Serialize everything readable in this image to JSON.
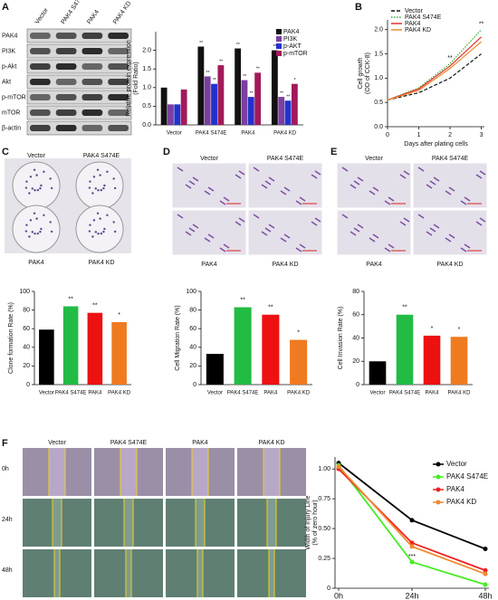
{
  "panel_letters": [
    "A",
    "B",
    "C",
    "D",
    "E",
    "F"
  ],
  "blot": {
    "columns": [
      "Vector",
      "PAK4 S474E",
      "PAK4",
      "PAK4 KD"
    ],
    "rows": [
      "PAK4",
      "PI3K",
      "p-Akt",
      "Akt",
      "p-mTOR",
      "mTOR",
      "β-actin"
    ]
  },
  "photos": {
    "group_labels": [
      "Vector",
      "PAK4 S474E",
      "PAK4",
      "PAK4 KD"
    ],
    "time_labels": [
      "0h",
      "24h",
      "48h"
    ]
  },
  "chart_data": [
    {
      "type": "grouped_bar",
      "ylabel": [
        "Relative protein expression",
        "(Fold Ratio)"
      ],
      "categories": [
        "Vector",
        "PAK4 S474E",
        "PAK4",
        "PAK4 KD"
      ],
      "series": [
        {
          "name": "PAK4",
          "color": "#111111",
          "values": [
            1.0,
            2.1,
            2.05,
            2.0
          ],
          "significance": [
            null,
            "**",
            "**",
            "**"
          ]
        },
        {
          "name": "PI3K",
          "color": "#7b3fa0",
          "values": [
            0.55,
            1.3,
            1.2,
            0.75
          ],
          "significance": [
            null,
            "**",
            "**",
            "**"
          ]
        },
        {
          "name": "p-AKT",
          "color": "#2233cc",
          "values": [
            0.55,
            1.1,
            0.75,
            0.65
          ],
          "significance": [
            null,
            "**",
            "**",
            "**"
          ]
        },
        {
          "name": "p-mTOR",
          "color": "#a3195b",
          "values": [
            0.95,
            1.6,
            1.4,
            1.1
          ],
          "significance": [
            null,
            "**",
            "**",
            "*"
          ]
        }
      ],
      "ylim": [
        0,
        2.5
      ],
      "yticks": [
        {
          "value": 0,
          "label": "0.0"
        },
        {
          "value": 0.5,
          "label": "0.5"
        },
        {
          "value": 1,
          "label": "1.0"
        },
        {
          "value": 1.5,
          "label": "1.5"
        },
        {
          "value": 2,
          "label": "2.0"
        }
      ],
      "legend": "upper right"
    },
    {
      "type": "line",
      "ylabel": [
        "Cell growth",
        "(OD of CCK-8)"
      ],
      "xlabel": "Days after plating cells",
      "x": [
        0,
        1,
        2,
        3
      ],
      "xlim": [
        0,
        3.1
      ],
      "xticks": [
        0,
        1,
        2,
        3
      ],
      "series": [
        {
          "name": "Vector",
          "color": "#111111",
          "style": "dashed",
          "values": [
            0.55,
            0.7,
            1.0,
            1.5
          ]
        },
        {
          "name": "PAK4 S474E",
          "color": "#33aa33",
          "style": "dotted",
          "values": [
            0.55,
            0.8,
            1.3,
            2.0
          ],
          "significance": [
            null,
            null,
            "**",
            "**"
          ]
        },
        {
          "name": "PAK4",
          "color": "#e03030",
          "style": "solid",
          "values": [
            0.55,
            0.78,
            1.25,
            1.85
          ]
        },
        {
          "name": "PAK4 KD",
          "color": "#f08a30",
          "style": "solid",
          "values": [
            0.55,
            0.75,
            1.2,
            1.75
          ]
        }
      ],
      "ylim": [
        0,
        2.2
      ],
      "yticks": [
        {
          "value": 0,
          "label": "0.0"
        },
        {
          "value": 0.5,
          "label": "0.5"
        },
        {
          "value": 1,
          "label": "1.0"
        },
        {
          "value": 1.5,
          "label": "1.5"
        },
        {
          "value": 2,
          "label": "2.0"
        }
      ],
      "legend": "upper left"
    },
    {
      "type": "bar",
      "ylabel": [
        "Clone formation Rate (%)"
      ],
      "categories": [
        "Vector",
        "PAK4 S474E",
        "PAK4",
        "PAK4 KD"
      ],
      "values": [
        59,
        84,
        77,
        67
      ],
      "colors": [
        "#000000",
        "#22bb44",
        "#ee1111",
        "#f07a20"
      ],
      "significance": [
        null,
        "**",
        "**",
        "*"
      ],
      "ylim": [
        0,
        100
      ],
      "yticks": [
        0,
        20,
        40,
        60,
        80,
        100
      ]
    },
    {
      "type": "bar",
      "ylabel": [
        "Cell Migration Rate (%)"
      ],
      "categories": [
        "Vector",
        "PAK4 S474E",
        "PAK4",
        "PAK4 KD"
      ],
      "values": [
        33,
        83,
        75,
        48
      ],
      "colors": [
        "#000000",
        "#22bb44",
        "#ee1111",
        "#f07a20"
      ],
      "significance": [
        null,
        "**",
        "**",
        "*"
      ],
      "ylim": [
        0,
        100
      ],
      "yticks": [
        0,
        20,
        40,
        60,
        80,
        100
      ]
    },
    {
      "type": "bar",
      "ylabel": [
        "Cell Invasion Rate (%)"
      ],
      "categories": [
        "Vector",
        "PAK4 S474E",
        "PAK4",
        "PAK4 KD"
      ],
      "values": [
        20,
        60,
        42,
        41
      ],
      "colors": [
        "#000000",
        "#22bb44",
        "#ee1111",
        "#f07a20"
      ],
      "significance": [
        null,
        "**",
        "*",
        "*"
      ],
      "ylim": [
        0,
        80
      ],
      "yticks": [
        0,
        20,
        40,
        60,
        80
      ]
    },
    {
      "type": "line",
      "ylabel": [
        "Width of Injury Line",
        "(% of zero hour)"
      ],
      "categories": [
        "0h",
        "24h",
        "48h"
      ],
      "series": [
        {
          "name": "Vector",
          "color": "#000000",
          "style": "solid",
          "values": [
            1.05,
            0.57,
            0.33
          ]
        },
        {
          "name": "PAK4 S474E",
          "color": "#44ee22",
          "style": "solid",
          "values": [
            1.03,
            0.22,
            0.03
          ],
          "significance": [
            null,
            "***",
            null
          ]
        },
        {
          "name": "PAK4",
          "color": "#ee2222",
          "style": "solid",
          "values": [
            1.0,
            0.38,
            0.15
          ]
        },
        {
          "name": "PAK4 KD",
          "color": "#f08a30",
          "style": "solid",
          "values": [
            1.02,
            0.35,
            0.12
          ]
        }
      ],
      "ylim": [
        0,
        1.1
      ],
      "yticks": [
        0,
        {
          "value": 0.25,
          "label": "0.25"
        },
        {
          "value": 0.5,
          "label": "0.50"
        },
        {
          "value": 0.75,
          "label": "0.75"
        },
        {
          "value": 1,
          "label": "1.00"
        }
      ],
      "markers": true,
      "legend": "upper right"
    }
  ]
}
